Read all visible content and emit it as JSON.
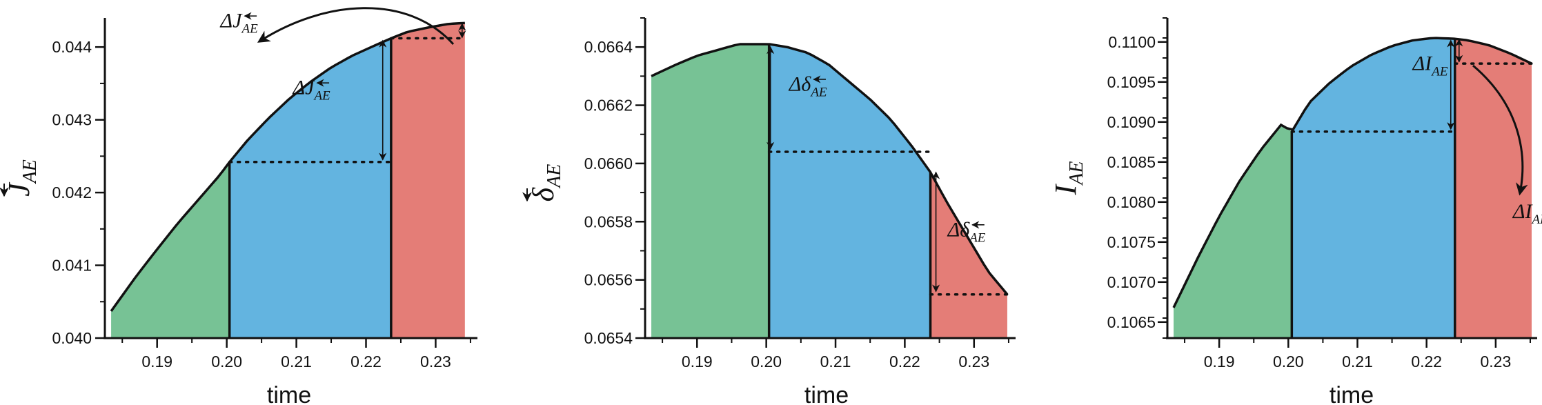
{
  "colors": {
    "early": "#77c295",
    "middle": "#63b4e0",
    "late": "#e47d77",
    "ink": "#111111"
  },
  "chart_data": [
    {
      "type": "area",
      "xlabel": "time",
      "ylabel": {
        "symbol": "J",
        "subscript": "AE",
        "accent": "arrow-left-over"
      },
      "xlim": [
        0.1825,
        0.236
      ],
      "ylim": [
        0.04,
        0.0444
      ],
      "x_ticks": [
        0.19,
        0.2,
        0.21,
        0.22,
        0.23
      ],
      "x_tick_labels": [
        "0.19",
        "0.20",
        "0.21",
        "0.22",
        "0.23"
      ],
      "y_ticks": [
        0.04,
        0.041,
        0.042,
        0.043,
        0.044
      ],
      "y_tick_labels": [
        "0.040",
        "0.041",
        "0.042",
        "0.043",
        "0.044"
      ],
      "y_minor_step": 0.0005,
      "x_minor_step": 0.005,
      "curve_x": [
        0.1834,
        0.187,
        0.19,
        0.193,
        0.196,
        0.199,
        0.2004,
        0.203,
        0.206,
        0.209,
        0.212,
        0.215,
        0.218,
        0.221,
        0.2236,
        0.226,
        0.229,
        0.232,
        0.2342
      ],
      "curve_y": [
        0.04037,
        0.04085,
        0.04122,
        0.04158,
        0.04191,
        0.04224,
        0.04242,
        0.04272,
        0.04302,
        0.04329,
        0.04352,
        0.04372,
        0.04388,
        0.04401,
        0.04412,
        0.04421,
        0.04427,
        0.04432,
        0.04433
      ],
      "regions": [
        {
          "from": 0.1834,
          "to": 0.2004,
          "color": "early"
        },
        {
          "from": 0.2004,
          "to": 0.2236,
          "color": "middle"
        },
        {
          "from": 0.2236,
          "to": 0.2342,
          "color": "late"
        }
      ],
      "dividers": [
        0.2004,
        0.2236
      ],
      "dotted_levels": [
        {
          "y": 0.04242,
          "x_from": 0.2004,
          "x_to": 0.2236
        },
        {
          "y": 0.04412,
          "x_from": 0.2236,
          "x_to": 0.2342
        }
      ],
      "deltas": [
        {
          "x": 0.2224,
          "y_from": 0.04245,
          "y_to": 0.04409
        },
        {
          "x": 0.2338,
          "y_from": 0.04413,
          "y_to": 0.04432
        }
      ],
      "annotations": [
        {
          "text": "ΔJ",
          "sub": "AE",
          "accent": "arrow-left-over",
          "at": [
            0.2095,
            0.04335
          ]
        },
        {
          "text": "ΔJ",
          "sub": "AE",
          "accent": "arrow-left-over",
          "at": [
            0.1991,
            0.04427
          ]
        }
      ]
    },
    {
      "type": "area",
      "xlabel": "time",
      "ylabel": {
        "symbol": "δ",
        "subscript": "AE",
        "accent": "arrow-down-over"
      },
      "xlim": [
        0.1825,
        0.236
      ],
      "ylim": [
        0.0654,
        0.0665
      ],
      "x_ticks": [
        0.19,
        0.2,
        0.21,
        0.22,
        0.23
      ],
      "x_tick_labels": [
        "0.19",
        "0.20",
        "0.21",
        "0.22",
        "0.23"
      ],
      "y_ticks": [
        0.0654,
        0.0656,
        0.0658,
        0.066,
        0.0662,
        0.0664
      ],
      "y_tick_labels": [
        "0.0654",
        "0.0656",
        "0.0658",
        "0.0660",
        "0.0662",
        "0.0664"
      ],
      "y_minor_step": 0.0001,
      "x_minor_step": 0.005,
      "curve_x": [
        0.1834,
        0.187,
        0.19,
        0.193,
        0.196,
        0.199,
        0.2004,
        0.203,
        0.206,
        0.209,
        0.212,
        0.215,
        0.218,
        0.221,
        0.2237,
        0.226,
        0.229,
        0.232,
        0.2348
      ],
      "curve_y": [
        0.0663,
        0.06634,
        0.06637,
        0.06639,
        0.06641,
        0.06641,
        0.06641,
        0.0664,
        0.06638,
        0.06634,
        0.06628,
        0.06622,
        0.06615,
        0.06606,
        0.06597,
        0.06587,
        0.06575,
        0.06563,
        0.06555
      ],
      "regions": [
        {
          "from": 0.1834,
          "to": 0.2004,
          "color": "early"
        },
        {
          "from": 0.2004,
          "to": 0.2237,
          "color": "middle"
        },
        {
          "from": 0.2237,
          "to": 0.2348,
          "color": "late"
        }
      ],
      "dividers": [
        0.2004,
        0.2237
      ],
      "dotted_levels": [
        {
          "y": 0.06604,
          "x_from": 0.2004,
          "x_to": 0.2237
        },
        {
          "y": 0.06555,
          "x_from": 0.2237,
          "x_to": 0.2348
        }
      ],
      "deltas": [
        {
          "x": 0.2006,
          "y_from": 0.0664,
          "y_to": 0.06605
        },
        {
          "x": 0.2245,
          "y_from": 0.06597,
          "y_to": 0.06556
        }
      ],
      "annotations": [
        {
          "text": "Δδ",
          "sub": "AE",
          "accent": "arrow-left-over",
          "at": [
            0.2033,
            0.06625
          ]
        },
        {
          "text": "Δδ",
          "sub": "AE",
          "accent": "arrow-left-over",
          "at": [
            0.2262,
            0.06575
          ]
        }
      ]
    },
    {
      "type": "area",
      "xlabel": "time",
      "ylabel": {
        "symbol": "I",
        "subscript": "AE",
        "accent": ""
      },
      "xlim": [
        0.1825,
        0.236
      ],
      "ylim": [
        0.1063,
        0.1103
      ],
      "x_ticks": [
        0.19,
        0.2,
        0.21,
        0.22,
        0.23
      ],
      "x_tick_labels": [
        "0.19",
        "0.20",
        "0.21",
        "0.22",
        "0.23"
      ],
      "y_ticks": [
        0.1065,
        0.107,
        0.1075,
        0.108,
        0.1085,
        0.109,
        0.1095,
        0.11
      ],
      "y_tick_labels": [
        "0.1065",
        "0.1070",
        "0.1075",
        "0.1080",
        "0.1085",
        "0.1090",
        "0.1095",
        "0.1100"
      ],
      "y_minor_step": 0.00025,
      "x_minor_step": 0.005,
      "curve_x": [
        0.1834,
        0.187,
        0.19,
        0.193,
        0.196,
        0.199,
        0.2005,
        0.203,
        0.206,
        0.209,
        0.212,
        0.215,
        0.218,
        0.221,
        0.2241,
        0.226,
        0.229,
        0.232,
        0.2352
      ],
      "curve_y": [
        0.10668,
        0.10732,
        0.10782,
        0.10827,
        0.10865,
        0.10897,
        0.10888,
        0.10924,
        0.10949,
        0.10969,
        0.10984,
        0.10995,
        0.11002,
        0.11005,
        0.11004,
        0.11002,
        0.10996,
        0.10986,
        0.10973
      ],
      "regions": [
        {
          "from": 0.1834,
          "to": 0.2005,
          "color": "early"
        },
        {
          "from": 0.2005,
          "to": 0.2241,
          "color": "middle"
        },
        {
          "from": 0.2241,
          "to": 0.2352,
          "color": "late"
        }
      ],
      "dividers": [
        0.2005,
        0.2241
      ],
      "dotted_levels": [
        {
          "y": 0.10888,
          "x_from": 0.2005,
          "x_to": 0.2241
        },
        {
          "y": 0.10973,
          "x_from": 0.2241,
          "x_to": 0.2352
        }
      ],
      "deltas": [
        {
          "x": 0.2235,
          "y_from": 0.11002,
          "y_to": 0.10891
        },
        {
          "x": 0.2247,
          "y_from": 0.11003,
          "y_to": 0.10975
        }
      ],
      "annotations": [
        {
          "text": "ΔI",
          "sub": "AE",
          "accent": "",
          "at": [
            0.218,
            0.10965
          ]
        },
        {
          "text": "ΔI",
          "sub": "AE",
          "accent": "",
          "at": [
            0.2325,
            0.1078
          ]
        }
      ]
    }
  ]
}
